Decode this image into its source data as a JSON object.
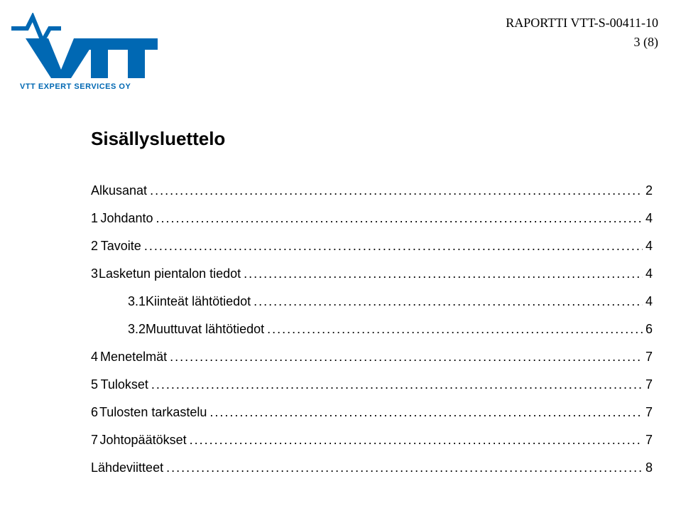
{
  "colors": {
    "vtt_blue": "#0068b3",
    "text": "#000000",
    "bg": "#ffffff"
  },
  "header": {
    "report_id": "RAPORTTI VTT-S-00411-10",
    "page_indicator": "3 (8)"
  },
  "logo": {
    "brand": "VTT",
    "tagline": "VTT EXPERT SERVICES OY"
  },
  "title": "Sisällysluettelo",
  "toc": [
    {
      "num": "",
      "label": "Alkusanat",
      "page": "2",
      "level": 0,
      "nonum": true
    },
    {
      "num": "1",
      "label": "Johdanto",
      "page": "4",
      "level": 0
    },
    {
      "num": "2",
      "label": "Tavoite",
      "page": "4",
      "level": 0
    },
    {
      "num": "3",
      "label": "Lasketun pientalon tiedot",
      "page": "4",
      "level": 0
    },
    {
      "num": "3.1",
      "label": "Kiinteät lähtötiedot",
      "page": "4",
      "level": 1
    },
    {
      "num": "3.2",
      "label": "Muuttuvat lähtötiedot",
      "page": "6",
      "level": 1
    },
    {
      "num": "4",
      "label": "Menetelmät",
      "page": "7",
      "level": 0
    },
    {
      "num": "5",
      "label": "Tulokset",
      "page": "7",
      "level": 0
    },
    {
      "num": "6",
      "label": "Tulosten tarkastelu",
      "page": "7",
      "level": 0
    },
    {
      "num": "7",
      "label": "Johtopäätökset",
      "page": "7",
      "level": 0
    },
    {
      "num": "",
      "label": "Lähdeviitteet",
      "page": "8",
      "level": 0,
      "nonum": true
    }
  ]
}
